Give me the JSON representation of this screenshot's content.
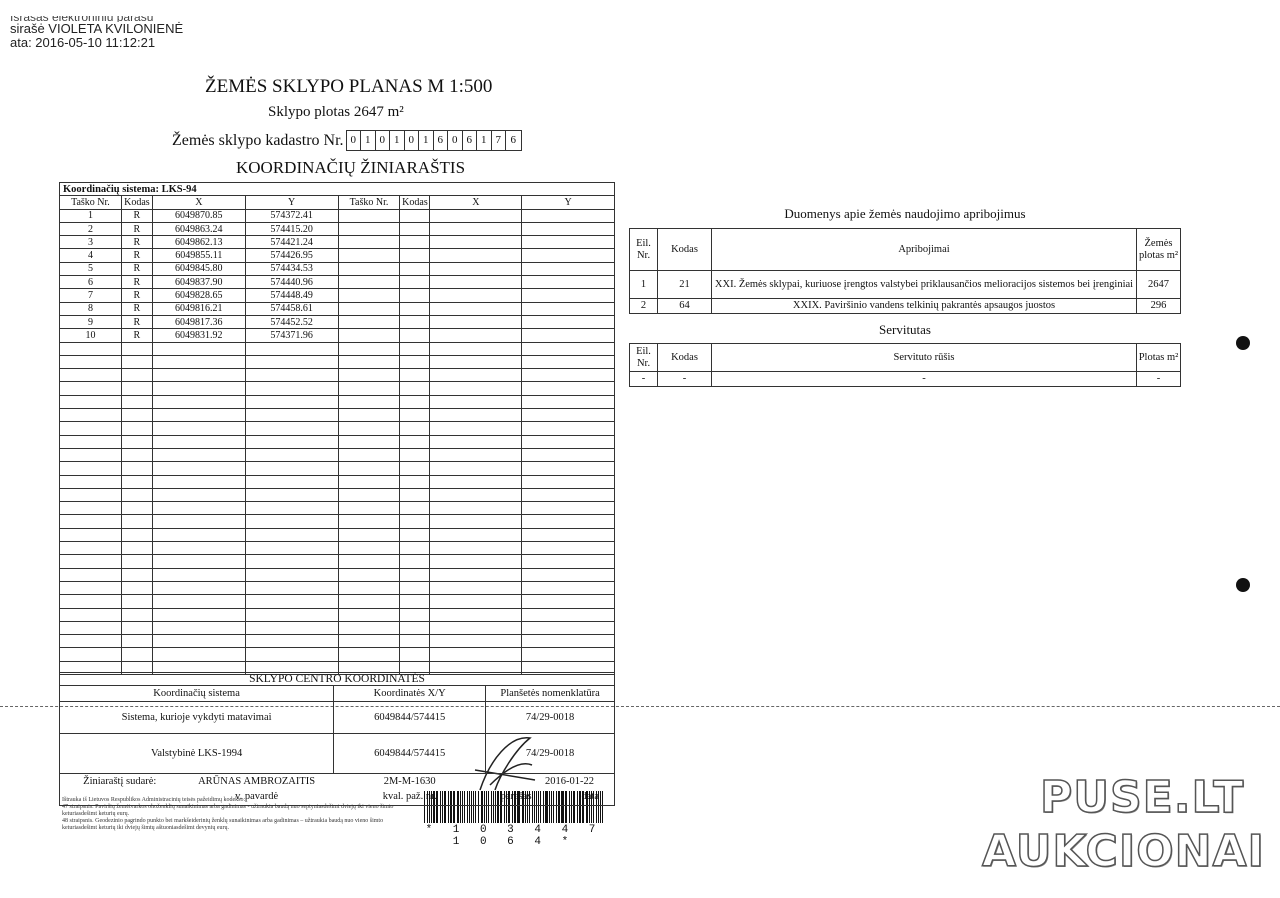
{
  "signature_stamp": {
    "line0": "Išrašas elektroniniu parašu",
    "line1": "sirašė VIOLETA KVILONIENĖ",
    "line2": "ata: 2016-05-10 11:12:21"
  },
  "title": "ŽEMĖS SKLYPO PLANAS M 1:500",
  "area": "Sklypo plotas 2647 m²",
  "cadastre_label": "Žemės sklypo kadastro Nr.",
  "cadastre_digits": [
    "0",
    "1",
    "0",
    "1",
    "0",
    "1",
    "6",
    "0",
    "6",
    "1",
    "7",
    "6"
  ],
  "coord_title": "KOORDINAČIŲ ŽINIARAŠTIS",
  "coord_table": {
    "system": "Koordinačių sistema: LKS-94",
    "headers": [
      "Taško Nr.",
      "Kodas",
      "X",
      "Y",
      "Taško Nr.",
      "Kodas",
      "X",
      "Y"
    ],
    "rows": [
      [
        "1",
        "R",
        "6049870.85",
        "574372.41"
      ],
      [
        "2",
        "R",
        "6049863.24",
        "574415.20"
      ],
      [
        "3",
        "R",
        "6049862.13",
        "574421.24"
      ],
      [
        "4",
        "R",
        "6049855.11",
        "574426.95"
      ],
      [
        "5",
        "R",
        "6049845.80",
        "574434.53"
      ],
      [
        "6",
        "R",
        "6049837.90",
        "574440.96"
      ],
      [
        "7",
        "R",
        "6049828.65",
        "574448.49"
      ],
      [
        "8",
        "R",
        "6049816.21",
        "574458.61"
      ],
      [
        "9",
        "R",
        "6049817.36",
        "574452.52"
      ],
      [
        "10",
        "R",
        "6049831.92",
        "574371.96"
      ]
    ]
  },
  "center": {
    "title": "SKLYPO CENTRO KOORDINATĖS",
    "headers": [
      "Koordinačių sistema",
      "Koordinatės X/Y",
      "Planšetės nomenklatūra"
    ],
    "rows": [
      [
        "Sistema, kurioje vykdyti matavimai",
        "6049844/574415",
        "74/29-0018"
      ],
      [
        "Valstybinė LKS-1994",
        "6049844/574415",
        "74/29-0018"
      ]
    ],
    "compiler_label": "Žiniaraštį sudarė:",
    "compiler_name": "ARŪNAS AMBROZAITIS",
    "qual_no": "2M-M-1630",
    "date": "2016-01-22",
    "name_caption": "v. pavardė",
    "qual_caption": "kval. paž. nr.",
    "sign_caption": "parašas",
    "date_caption": "data"
  },
  "restrictions": {
    "title": "Duomenys apie žemės naudojimo apribojimus",
    "headers": [
      "Eil. Nr.",
      "Kodas",
      "Apribojimai",
      "Žemės plotas m²"
    ],
    "rows": [
      [
        "1",
        "21",
        "XXI. Žemės sklypai, kuriuose įrengtos valstybei priklausančios melioracijos sistemos bei įrenginiai",
        "2647"
      ],
      [
        "2",
        "64",
        "XXIX. Paviršinio vandens telkinių pakrantės apsaugos juostos",
        "296"
      ]
    ]
  },
  "servitude": {
    "title": "Servitutas",
    "headers": [
      "Eil. Nr.",
      "Kodas",
      "Servituto rūšis",
      "Plotas m²"
    ],
    "rows": [
      [
        "-",
        "-",
        "-",
        "-"
      ]
    ]
  },
  "footnote": [
    "Ištrauka iš Lietuvos Respublikos Administracinių teisės pažeidimų kodekso:",
    "47 straipsnis. Paviršių žemėtvarkos ohoženklių sunaikinimas arba gadinimas - užtraukia baudą nuo septyniasdešimt dviejų iki vieno šimto keturiasdešimt keturių eurų.",
    "48 straipsnis. Geodezinio pagrindo punkto bei markšeiderinių ženklų sunaikinimas arba gadinimas – užtraukia baudą nuo vieno šimto keturiasdešimt keturių iki dviejų šimtų aštuoniasdešimt devynių eurų."
  ],
  "barcode_number": "* 1 0 3 4 4 7 1 0 6 4 *",
  "watermark": {
    "line1": "PUSE.LT",
    "line2": "AUKCIONAI"
  }
}
